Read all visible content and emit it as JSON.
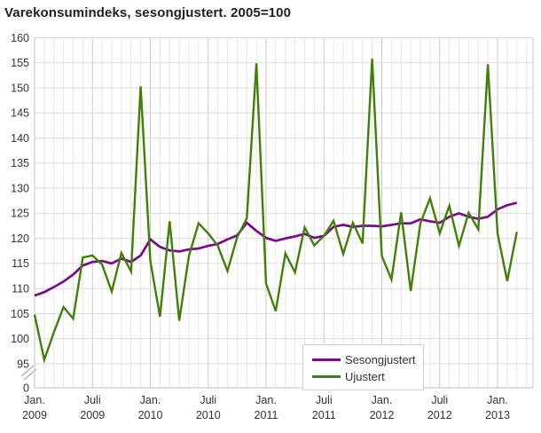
{
  "chart_data": {
    "type": "line",
    "title": "Varekonsumindeks, sesongjustert. 2005=100",
    "grid": true,
    "legend_position": "bottom-right",
    "y_axis": {
      "grid_min": 95,
      "grid_max": 160,
      "step": 5,
      "axis_break": true,
      "y_tick_labels": [
        "160",
        "155",
        "150",
        "145",
        "140",
        "135",
        "130",
        "125",
        "120",
        "115",
        "110",
        "105",
        "100",
        "95",
        "0"
      ]
    },
    "x_tick_labels": [
      {
        "month_index": 0,
        "line1": "Jan.",
        "line2": "2009"
      },
      {
        "month_index": 6,
        "line1": "Juli",
        "line2": "2009"
      },
      {
        "month_index": 12,
        "line1": "Jan.",
        "line2": "2010"
      },
      {
        "month_index": 18,
        "line1": "Juli",
        "line2": "2010"
      },
      {
        "month_index": 24,
        "line1": "Jan.",
        "line2": "2011"
      },
      {
        "month_index": 30,
        "line1": "Juli",
        "line2": "2011"
      },
      {
        "month_index": 36,
        "line1": "Jan.",
        "line2": "2012"
      },
      {
        "month_index": 42,
        "line1": "Juli",
        "line2": "2012"
      },
      {
        "month_index": 48,
        "line1": "Jan.",
        "line2": "2013"
      }
    ],
    "months": [
      "2009-01",
      "2009-02",
      "2009-03",
      "2009-04",
      "2009-05",
      "2009-06",
      "2009-07",
      "2009-08",
      "2009-09",
      "2009-10",
      "2009-11",
      "2009-12",
      "2010-01",
      "2010-02",
      "2010-03",
      "2010-04",
      "2010-05",
      "2010-06",
      "2010-07",
      "2010-08",
      "2010-09",
      "2010-10",
      "2010-11",
      "2010-12",
      "2011-01",
      "2011-02",
      "2011-03",
      "2011-04",
      "2011-05",
      "2011-06",
      "2011-07",
      "2011-08",
      "2011-09",
      "2011-10",
      "2011-11",
      "2011-12",
      "2012-01",
      "2012-02",
      "2012-03",
      "2012-04",
      "2012-05",
      "2012-06",
      "2012-07",
      "2012-08",
      "2012-09",
      "2012-10",
      "2012-11",
      "2012-12",
      "2013-01",
      "2013-02",
      "2013-03"
    ],
    "series": [
      {
        "name": "Sesongjustert",
        "color": "#780a8c",
        "values": [
          108.6,
          109.3,
          110.3,
          111.4,
          112.8,
          114.6,
          115.3,
          115.5,
          115.0,
          116.0,
          115.3,
          116.6,
          119.8,
          118.3,
          117.6,
          117.4,
          117.8,
          118.0,
          118.5,
          118.9,
          119.8,
          120.6,
          123.1,
          121.5,
          120.1,
          119.5,
          120.0,
          120.4,
          120.9,
          120.1,
          120.5,
          122.3,
          122.7,
          122.3,
          122.5,
          122.5,
          122.4,
          122.7,
          123.0,
          123.0,
          123.8,
          123.4,
          123.1,
          124.3,
          125.0,
          124.3,
          123.9,
          124.3,
          125.8,
          126.6,
          127.1
        ]
      },
      {
        "name": "Ujustert",
        "color": "#418008",
        "values": [
          104.8,
          95.8,
          101.3,
          106.3,
          104.0,
          116.2,
          116.6,
          114.8,
          109.4,
          117.1,
          113.4,
          150.3,
          115.5,
          104.4,
          123.4,
          103.6,
          116.5,
          123.0,
          121.0,
          118.5,
          113.5,
          120.2,
          124.0,
          154.9,
          111.0,
          105.5,
          117.0,
          113.2,
          122.2,
          118.6,
          120.5,
          123.5,
          116.9,
          123.1,
          119.0,
          155.8,
          116.5,
          111.8,
          125.2,
          109.5,
          123.0,
          128.0,
          121.0,
          126.5,
          118.5,
          125.1,
          121.8,
          154.7,
          121.0,
          111.5,
          121.3
        ]
      }
    ],
    "colors": {
      "grid_minor": "#e6e6e6",
      "grid_major": "#c8c8c8",
      "grid_horizontal": "#dcdcdc",
      "axis_line": "#c0c0c0",
      "tick_label": "#333333"
    }
  }
}
